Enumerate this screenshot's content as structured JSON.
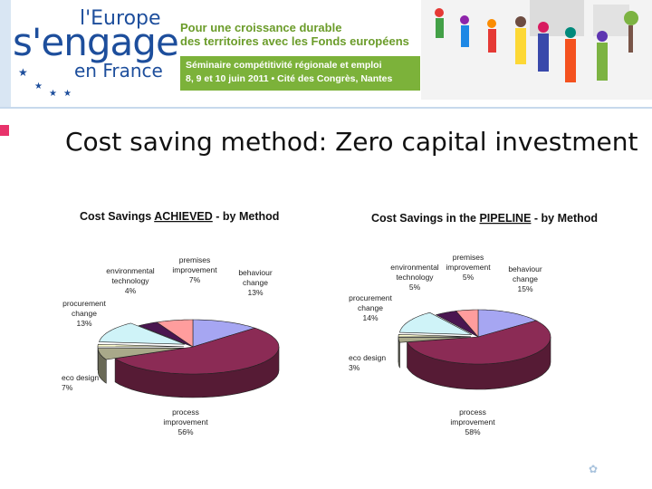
{
  "header": {
    "logo_top": "l'Europe",
    "logo_main": "s'engage",
    "logo_sub": "en France",
    "tagline_1": "Pour une croissance durable",
    "tagline_2": "des territoires avec les Fonds européens",
    "event_1": "Séminaire compétitivité régionale et emploi",
    "event_2": "8, 9 et 10 juin 2011 • Cité des Congrès, Nantes"
  },
  "slide": {
    "title": "Cost saving method: Zero capital investment"
  },
  "chart_data": [
    {
      "type": "pie",
      "title_pre": "Cost Savings ",
      "title_em": "ACHIEVED",
      "title_post": " - by Method",
      "slices": [
        {
          "label": [
            "behaviour",
            "change"
          ],
          "pct": "13%",
          "value": 13,
          "color": "#a6a6f2"
        },
        {
          "label": [
            "process",
            "improvement"
          ],
          "pct": "56%",
          "value": 56,
          "color": "#8b2b55"
        },
        {
          "label": [
            "eco design"
          ],
          "pct": "7%",
          "value": 7,
          "color": "#a9a98a"
        },
        {
          "label": [
            "",
            ""
          ],
          "pct": "",
          "value": 1.5,
          "color": "#ffffd0"
        },
        {
          "label": [
            "procurement",
            "change"
          ],
          "pct": "13%",
          "value": 13,
          "color": "#cff3f8"
        },
        {
          "label": [
            "environmental",
            "technology"
          ],
          "pct": "4%",
          "value": 4,
          "color": "#4a1650"
        },
        {
          "label": [
            "premises",
            "improvement"
          ],
          "pct": "7%",
          "value": 7,
          "color": "#ff9d9d"
        }
      ]
    },
    {
      "type": "pie",
      "title_pre": "Cost Savings in the ",
      "title_em": "PIPELINE",
      "title_post": " - by Method",
      "slices": [
        {
          "label": [
            "behaviour",
            "change"
          ],
          "pct": "15%",
          "value": 15,
          "color": "#a6a6f2"
        },
        {
          "label": [
            "process",
            "improvement"
          ],
          "pct": "58%",
          "value": 58,
          "color": "#8b2b55"
        },
        {
          "label": [
            "eco design"
          ],
          "pct": "3%",
          "value": 3,
          "color": "#a9a98a"
        },
        {
          "label": [
            "",
            ""
          ],
          "pct": "",
          "value": 1.5,
          "color": "#ffffd0"
        },
        {
          "label": [
            "procurement",
            "change"
          ],
          "pct": "14%",
          "value": 14,
          "color": "#cff3f8"
        },
        {
          "label": [
            "environmental",
            "technology"
          ],
          "pct": "5%",
          "value": 5,
          "color": "#4a1650"
        },
        {
          "label": [
            "premises",
            "improvement"
          ],
          "pct": "5%",
          "value": 5,
          "color": "#ff9d9d"
        }
      ]
    }
  ]
}
